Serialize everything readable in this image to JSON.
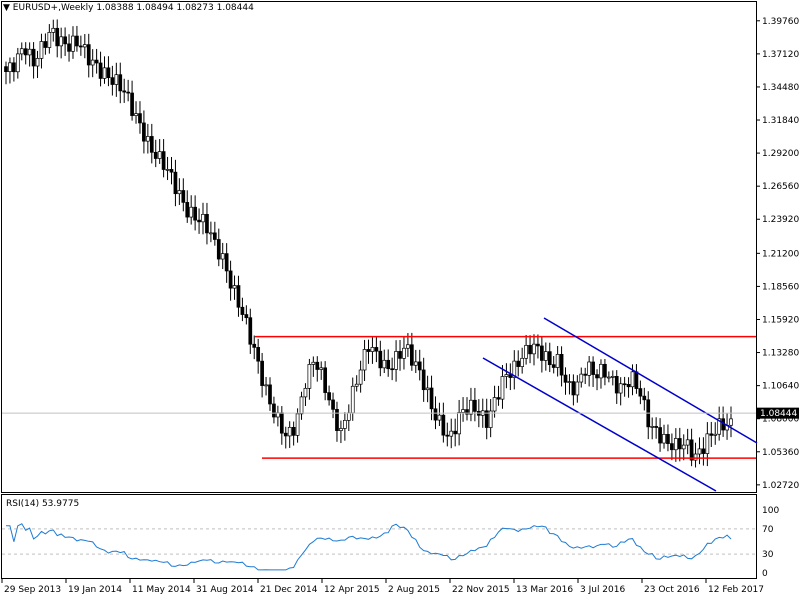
{
  "header": {
    "symbol": "EURUSD+,Weekly",
    "open": "1.08388",
    "high": "1.08494",
    "low": "1.08273",
    "close": "1.08444"
  },
  "rsi": {
    "label": "RSI(14) 53.9775"
  },
  "chart_data": [
    {
      "type": "candlestick",
      "symbol": "EURUSD+",
      "timeframe": "Weekly",
      "y_ticks": [
        "1.39760",
        "1.37120",
        "1.34480",
        "1.31840",
        "1.29200",
        "1.26560",
        "1.23920",
        "1.21200",
        "1.18560",
        "1.15920",
        "1.13280",
        "1.10640",
        "1.08000",
        "1.05360",
        "1.02720"
      ],
      "ylim": [
        1.0215,
        1.4126
      ],
      "x_ticks": [
        "29 Sep 2013",
        "19 Jan 2014",
        "11 May 2014",
        "31 Aug 2014",
        "21 Dec 2014",
        "12 Apr 2015",
        "2 Aug 2015",
        "22 Nov 2015",
        "13 Mar 2016",
        "3 Jul 2016",
        "23 Oct 2016",
        "12 Feb 2017"
      ],
      "current_price": "1.08444",
      "horizontal_lines": [
        {
          "level": 1.1455,
          "color": "#ff0000"
        },
        {
          "level": 1.0485,
          "color": "#ff0000"
        }
      ],
      "trend_channel_color": "#0000cc",
      "candle_count": 185,
      "anchor_closes": [
        1.357,
        1.368,
        1.38,
        1.36,
        1.373,
        1.392,
        1.385,
        1.378,
        1.377,
        1.367,
        1.364,
        1.358,
        1.348,
        1.338,
        1.326,
        1.315,
        1.297,
        1.284,
        1.273,
        1.262,
        1.25,
        1.241,
        1.232,
        1.218,
        1.209,
        1.188,
        1.165,
        1.14,
        1.118,
        1.099,
        1.081,
        1.062,
        1.071,
        1.11,
        1.133,
        1.112,
        1.081,
        1.065,
        1.097,
        1.122,
        1.138,
        1.125,
        1.118,
        1.131,
        1.141,
        1.123,
        1.107,
        1.089,
        1.079,
        1.064,
        1.078,
        1.087,
        1.09,
        1.081,
        1.094,
        1.109,
        1.118,
        1.134,
        1.142,
        1.131,
        1.12,
        1.126,
        1.109,
        1.107,
        1.118,
        1.112,
        1.121,
        1.113,
        1.103,
        1.109,
        1.099,
        1.079,
        1.071,
        1.058,
        1.054,
        1.061,
        1.053,
        1.06,
        1.066,
        1.072,
        1.077
      ],
      "rsi_indicator": {
        "name": "RSI(14)",
        "value": 53.9775,
        "levels": [
          70,
          30
        ],
        "y_ticks": [
          "100",
          "70",
          "30",
          "0"
        ],
        "ylim": [
          0,
          100
        ],
        "color": "#1e7bd4"
      }
    }
  ]
}
